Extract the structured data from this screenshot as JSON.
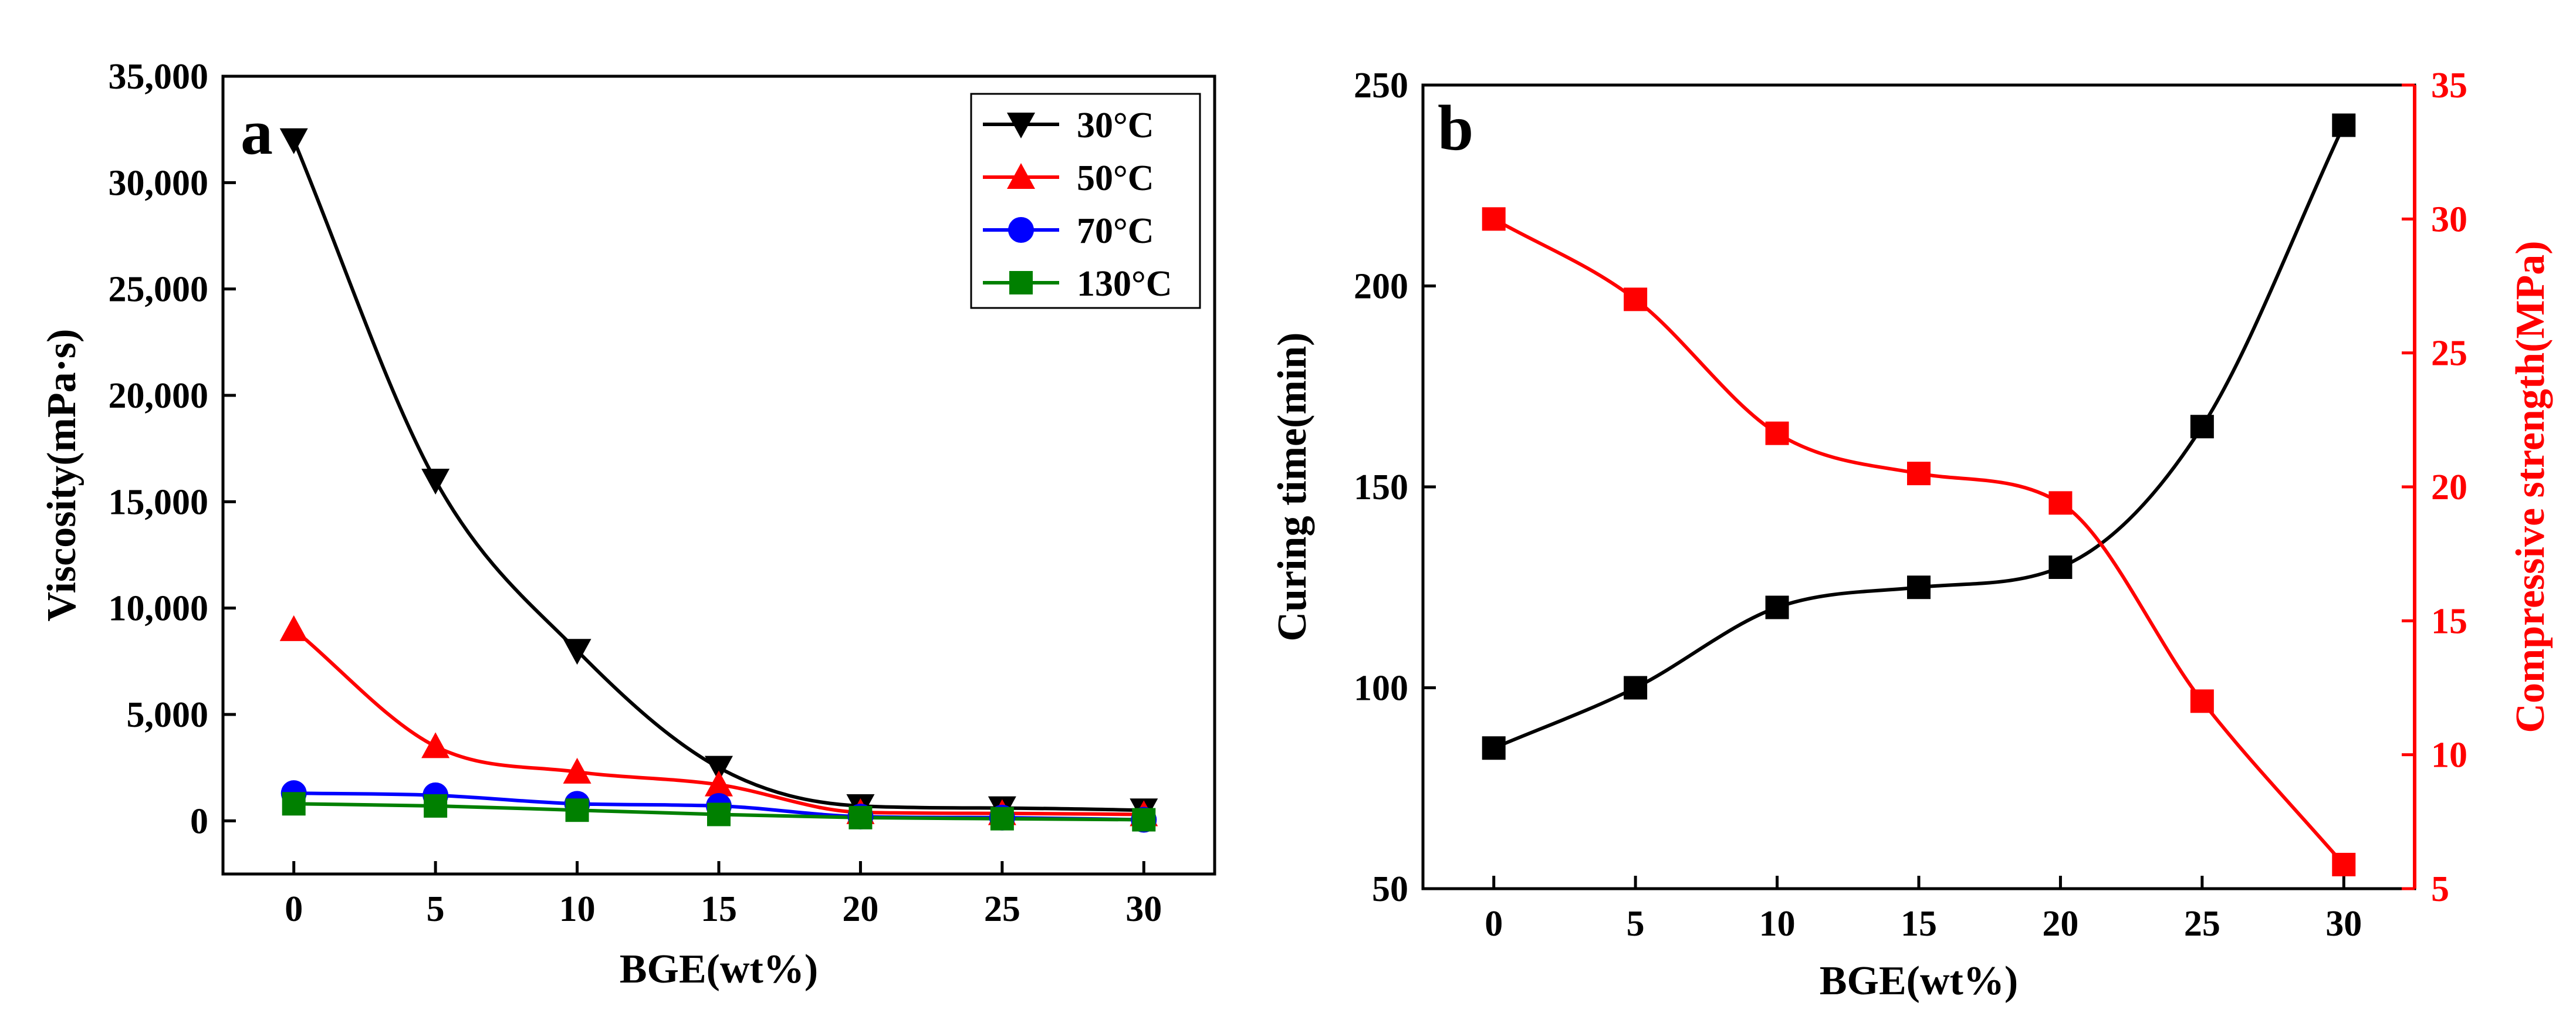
{
  "chart_data": [
    {
      "panel_label": "a",
      "type": "line",
      "xlabel": "BGE(wt%)",
      "ylabel": "Viscosity(mPa·s)",
      "x": [
        0,
        5,
        10,
        15,
        20,
        25,
        30
      ],
      "x_ticks": [
        "0",
        "5",
        "10",
        "15",
        "20",
        "25",
        "30"
      ],
      "xlim": [
        -2.5,
        32.5
      ],
      "ylim": [
        -2500,
        35000
      ],
      "y_ticks": [
        "0",
        "5,000",
        "10,000",
        "15,000",
        "20,000",
        "25,000",
        "30,000",
        "35,000"
      ],
      "legend_position": "top-right",
      "grid": false,
      "series": [
        {
          "name": "30°C",
          "color": "#000000",
          "marker": "triangle-down",
          "values": [
            32000,
            16000,
            8000,
            2500,
            700,
            600,
            500
          ]
        },
        {
          "name": "50°C",
          "color": "#ff0000",
          "marker": "triangle-up",
          "values": [
            9000,
            3500,
            2300,
            1700,
            400,
            350,
            300
          ]
        },
        {
          "name": "70°C",
          "color": "#0000ff",
          "marker": "circle",
          "values": [
            1300,
            1200,
            800,
            700,
            200,
            150,
            50
          ]
        },
        {
          "name": "130°C",
          "color": "#008000",
          "marker": "square",
          "values": [
            800,
            700,
            500,
            300,
            150,
            100,
            50
          ]
        }
      ]
    },
    {
      "panel_label": "b",
      "type": "line",
      "xlabel": "BGE(wt%)",
      "ylabel_left": "Curing time(min)",
      "ylabel_right": "Compressive strength(MPa)",
      "x": [
        0,
        5,
        10,
        15,
        20,
        25,
        30
      ],
      "x_ticks": [
        "0",
        "5",
        "10",
        "15",
        "20",
        "25",
        "30"
      ],
      "xlim": [
        -2.5,
        32.5
      ],
      "ylim_left": [
        50,
        250
      ],
      "y_ticks_left": [
        "50",
        "100",
        "150",
        "200",
        "250"
      ],
      "ylim_right": [
        5,
        35
      ],
      "y_ticks_right": [
        "5",
        "10",
        "15",
        "20",
        "25",
        "30",
        "35"
      ],
      "grid": false,
      "series": [
        {
          "axis": "left",
          "color": "#000000",
          "marker": "square",
          "values": [
            85,
            100,
            120,
            125,
            130,
            165,
            240
          ]
        },
        {
          "axis": "right",
          "color": "#ff0000",
          "marker": "square",
          "values": [
            30,
            27,
            22,
            20.5,
            19.4,
            12,
            5.9
          ]
        }
      ]
    }
  ]
}
